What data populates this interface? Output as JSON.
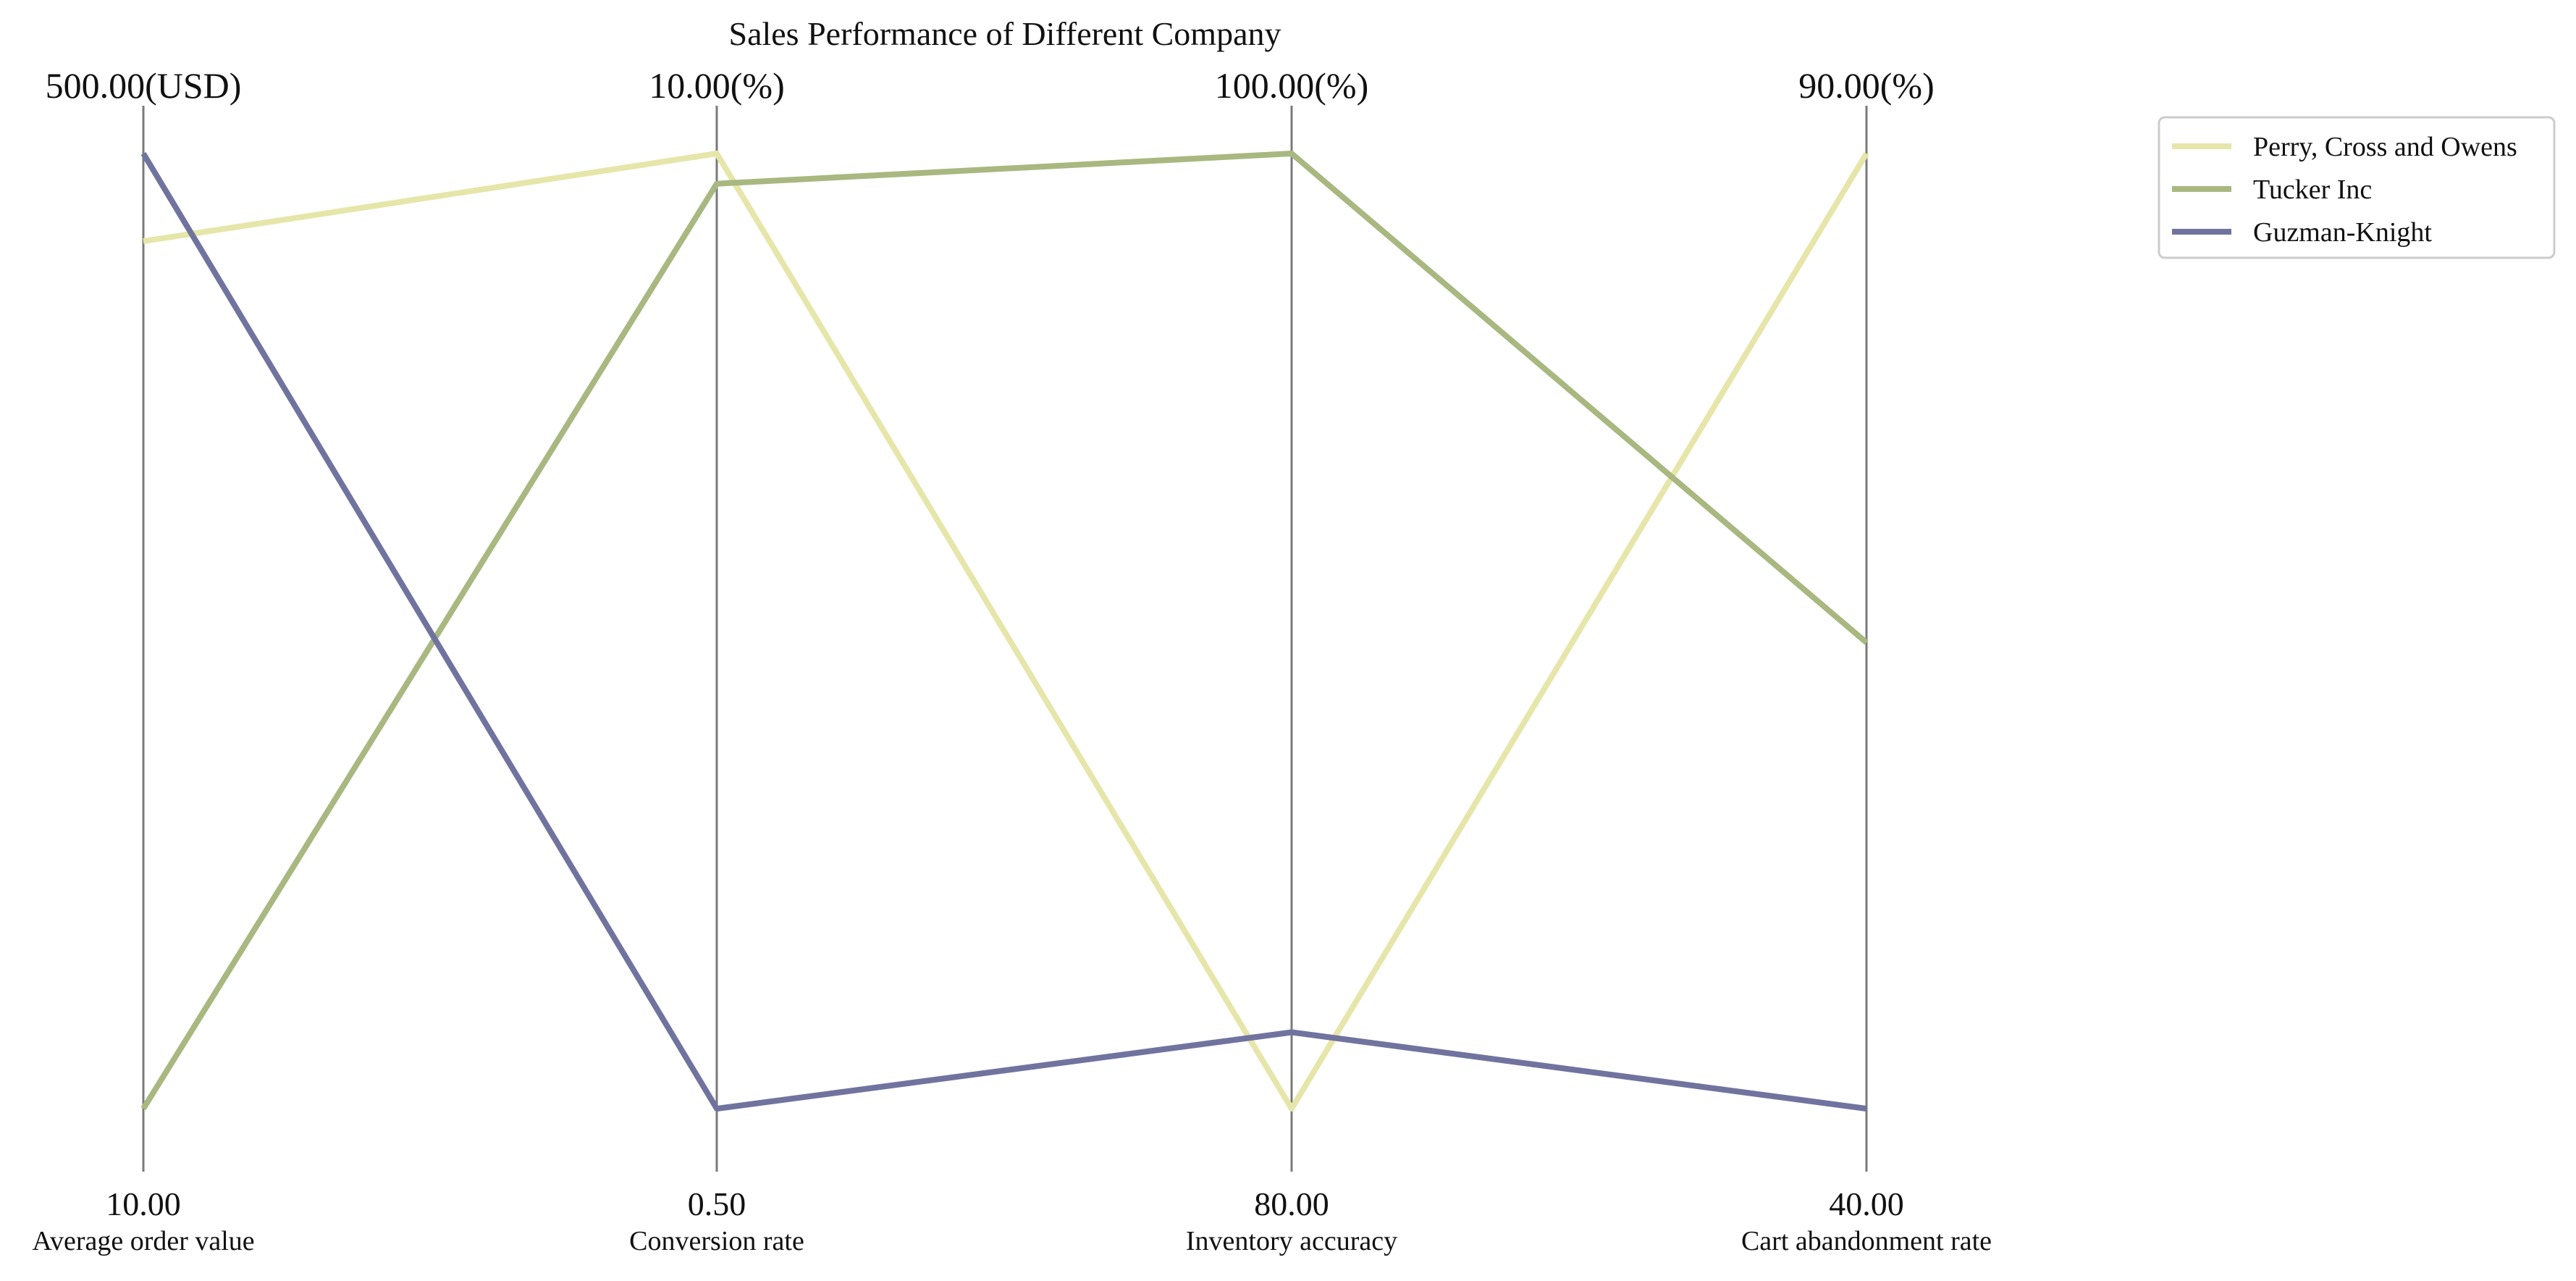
{
  "chart_data": {
    "type": "line",
    "subtype": "parallel-coordinates",
    "title": "Sales Performance of Different Company",
    "axes": [
      {
        "name": "Average order value",
        "min": 10.0,
        "max": 500.0,
        "min_label": "10.00",
        "max_label": "500.00(USD)"
      },
      {
        "name": "Conversion rate",
        "min": 0.5,
        "max": 10.0,
        "min_label": "0.50",
        "max_label": "10.00(%)"
      },
      {
        "name": "Inventory accuracy",
        "min": 80.0,
        "max": 100.0,
        "min_label": "80.00",
        "max_label": "100.00(%)"
      },
      {
        "name": "Cart abandonment rate",
        "min": 40.0,
        "max": 90.0,
        "min_label": "40.00",
        "max_label": "90.00(%)"
      }
    ],
    "series": [
      {
        "name": "Perry, Cross and Owens",
        "color": "#e6e6aa",
        "values": [
          455.0,
          10.0,
          80.0,
          90.0
        ]
      },
      {
        "name": "Tucker Inc",
        "color": "#a8b880",
        "values": [
          10.0,
          9.7,
          100.0,
          64.4
        ]
      },
      {
        "name": "Guzman-Knight",
        "color": "#71739f",
        "values": [
          500.0,
          0.5,
          81.6,
          40.0
        ]
      }
    ],
    "legend_position": "top-right",
    "grid": false
  }
}
